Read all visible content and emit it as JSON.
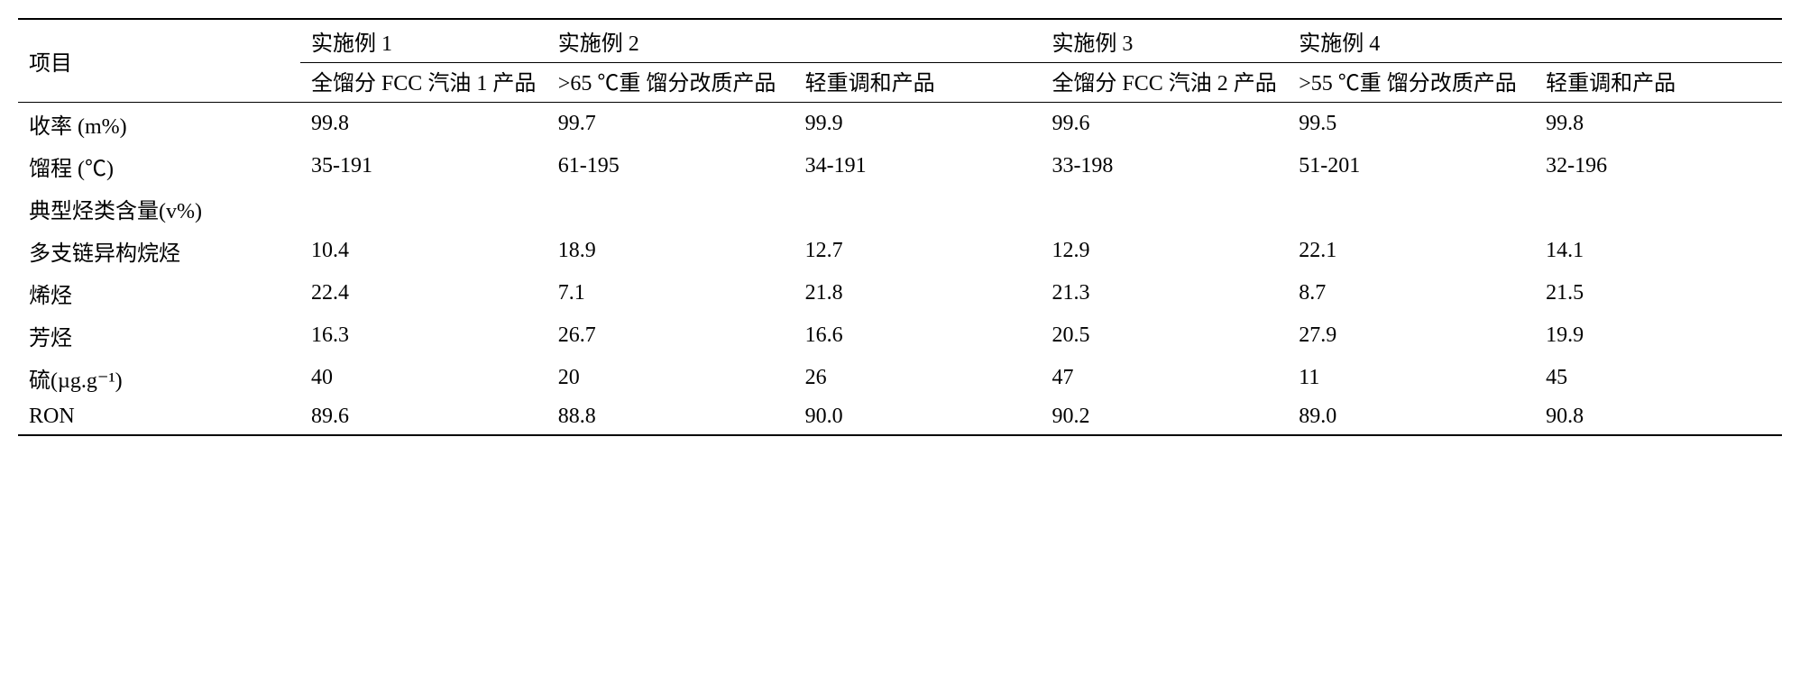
{
  "table": {
    "type": "table",
    "background_color": "#ffffff",
    "text_color": "#000000",
    "font_size": 24,
    "header": {
      "item_label": "项目",
      "example_labels": [
        "实施例 1",
        "实施例 2",
        "实施例 3",
        "实施例 4"
      ],
      "subheaders": [
        "全馏分 FCC 汽油 1 产品",
        ">65 ℃重 馏分改质产品",
        "轻重调和产品",
        "全馏分 FCC 汽油 2 产品",
        ">55 ℃重 馏分改质产品",
        "轻重调和产品"
      ]
    },
    "rows": [
      {
        "label": "收率 (m%)",
        "values": [
          "99.8",
          "99.7",
          "99.9",
          "99.6",
          "99.5",
          "99.8"
        ]
      },
      {
        "label": "馏程 (℃)",
        "values": [
          "35-191",
          "61-195",
          "34-191",
          "33-198",
          "51-201",
          "32-196"
        ]
      },
      {
        "label": "典型烃类含量(v%)",
        "values": [
          "",
          "",
          "",
          "",
          "",
          ""
        ]
      },
      {
        "label": "多支链异构烷烃",
        "values": [
          "10.4",
          "18.9",
          "12.7",
          "12.9",
          "22.1",
          "14.1"
        ]
      },
      {
        "label": "烯烃",
        "values": [
          "22.4",
          "7.1",
          "21.8",
          "21.3",
          "8.7",
          "21.5"
        ]
      },
      {
        "label": "芳烃",
        "values": [
          "16.3",
          "26.7",
          "16.6",
          "20.5",
          "27.9",
          "19.9"
        ]
      },
      {
        "label": "硫(µg.g⁻¹)",
        "values": [
          "40",
          "20",
          "26",
          "47",
          "11",
          "45"
        ]
      },
      {
        "label": "RON",
        "values": [
          "89.6",
          "88.8",
          "90.0",
          "90.2",
          "89.0",
          "90.8"
        ]
      }
    ]
  }
}
